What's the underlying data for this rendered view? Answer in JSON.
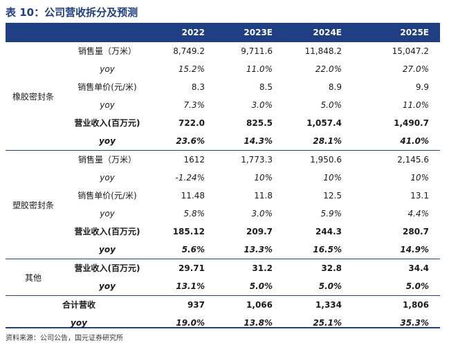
{
  "title": "表 10：公司营收拆分及预测",
  "header": [
    "",
    "2022",
    "2023E",
    "2024E",
    "2025E"
  ],
  "segments": [
    {
      "category": "橡胶密封条",
      "rows": [
        {
          "label": "销售量（万米）",
          "style": "plain",
          "values": [
            "8,749.2",
            "9,711.6",
            "11,848.2",
            "15,047.2"
          ]
        },
        {
          "label": "yoy",
          "style": "yoy",
          "values": [
            "15.2%",
            "11.0%",
            "22.0%",
            "27.0%"
          ]
        },
        {
          "label": "销售单价(元/米)",
          "style": "plain",
          "values": [
            "8.3",
            "8.5",
            "8.9",
            "9.9"
          ]
        },
        {
          "label": "yoy",
          "style": "yoy",
          "values": [
            "7.3%",
            "3.0%",
            "5.0%",
            "11.0%"
          ]
        },
        {
          "label": "营业收入(百万元)",
          "style": "strong",
          "values": [
            "722.0",
            "825.5",
            "1,057.4",
            "1,490.7"
          ]
        },
        {
          "label": "yoy",
          "style": "yoy-strong",
          "values": [
            "23.6%",
            "14.3%",
            "28.1%",
            "41.0%"
          ]
        }
      ]
    },
    {
      "category": "塑胶密封条",
      "rows": [
        {
          "label": "销售量（万米）",
          "style": "plain",
          "values": [
            "1612",
            "1,773.3",
            "1,950.6",
            "2,145.6"
          ]
        },
        {
          "label": "yoy",
          "style": "yoy",
          "values": [
            "-1.24%",
            "10%",
            "10%",
            "10%"
          ]
        },
        {
          "label": "销售单价(元/米)",
          "style": "plain",
          "values": [
            "11.48",
            "11.8",
            "12.5",
            "13.1"
          ]
        },
        {
          "label": "yoy",
          "style": "yoy",
          "values": [
            "5.8%",
            "3.0%",
            "5.9%",
            "4.4%"
          ]
        },
        {
          "label": "营业收入(百万元)",
          "style": "strong",
          "values": [
            "185.12",
            "209.7",
            "244.3",
            "280.7"
          ]
        },
        {
          "label": "yoy",
          "style": "yoy-strong",
          "values": [
            "5.6%",
            "13.3%",
            "16.5%",
            "14.9%"
          ]
        }
      ]
    },
    {
      "category": "其他",
      "rows": [
        {
          "label": "营业收入(百万元)",
          "style": "strong",
          "values": [
            "29.71",
            "31.2",
            "32.8",
            "34.4"
          ]
        },
        {
          "label": "yoy",
          "style": "yoy-strong",
          "values": [
            "13.1%",
            "5.0%",
            "5.0%",
            "5.0%"
          ]
        }
      ]
    }
  ],
  "total": {
    "rows": [
      {
        "label": "合计营收",
        "style": "strong",
        "values": [
          "937",
          "1,066",
          "1,334",
          "1,806"
        ]
      },
      {
        "label": "yoy",
        "style": "yoy-strong",
        "values": [
          "19.0%",
          "13.8%",
          "25.1%",
          "35.3%"
        ]
      }
    ]
  },
  "source": "资料来源：公司公告，国元证券研究所"
}
